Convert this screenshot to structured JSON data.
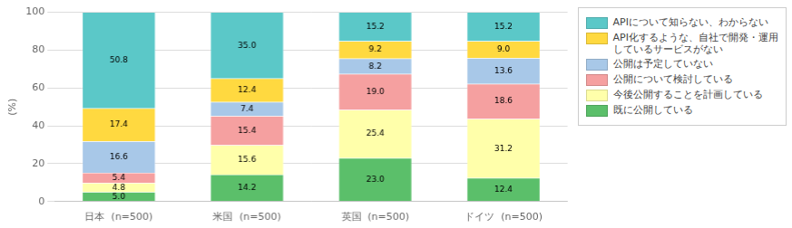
{
  "chart_data": {
    "type": "bar",
    "stacked": true,
    "categories": [
      "日本  (n=500)",
      "米国  (n=500)",
      "英国  (n=500)",
      "ドイツ  (n=500)"
    ],
    "series": [
      {
        "name": "既に公開している",
        "color": "#5bbf6a",
        "values": [
          5.0,
          14.2,
          23.0,
          12.4
        ],
        "value_labels": [
          "5.0",
          "14.2",
          "23.0",
          "12.4"
        ]
      },
      {
        "name": "今後公開することを計画している",
        "color": "#ffffaa",
        "values": [
          4.8,
          15.6,
          25.4,
          31.2
        ],
        "value_labels": [
          "4.8",
          "15.6",
          "25.4",
          "31.2"
        ]
      },
      {
        "name": "公開について検討している",
        "color": "#f5a0a0",
        "values": [
          5.4,
          15.4,
          19.0,
          18.6
        ],
        "value_labels": [
          "5.4",
          "15.4",
          "19.0",
          "18.6"
        ]
      },
      {
        "name": "公開は予定していない",
        "color": "#a8c8e8",
        "values": [
          16.6,
          7.4,
          8.2,
          13.6
        ],
        "value_labels": [
          "16.6",
          "7.4",
          "8.2",
          "13.6"
        ]
      },
      {
        "name": "API化するような、自社で開発・運用\nしているサービスがない",
        "color": "#ffd940",
        "values": [
          17.4,
          12.4,
          9.2,
          9.0
        ],
        "value_labels": [
          "17.4",
          "12.4",
          "9.2",
          "9.0"
        ]
      },
      {
        "name": "APIについて知らない、わからない",
        "color": "#5bc8c8",
        "values": [
          50.8,
          35.0,
          15.2,
          15.2
        ],
        "value_labels": [
          "50.8",
          "35.0",
          "15.2",
          "15.2"
        ]
      }
    ],
    "ylabel": "(%)",
    "ylim": [
      0,
      100
    ],
    "yticks": [
      0,
      20,
      40,
      60,
      80,
      100
    ],
    "grid": true,
    "data_labels": true,
    "legend": "right"
  }
}
